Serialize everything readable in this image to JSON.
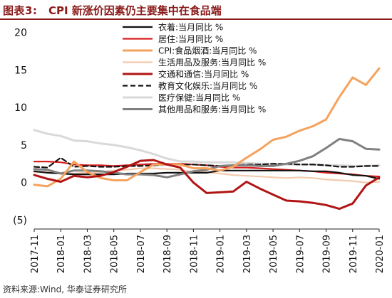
{
  "figure_label": "图表3:",
  "title": "CPI 新涨价因素仍主要集中在食品端",
  "source": "资料来源:Wind, 华泰证券研究所",
  "chart_data": {
    "type": "line",
    "ylim": [
      -6,
      21
    ],
    "y_ticks": [
      20,
      15,
      10,
      5,
      0,
      -5
    ],
    "y_tick_labels": [
      "20",
      "15",
      "10",
      "5",
      "0",
      "(5)"
    ],
    "x": [
      "2017-11",
      "2017-12",
      "2018-01",
      "2018-02",
      "2018-03",
      "2018-04",
      "2018-05",
      "2018-06",
      "2018-07",
      "2018-08",
      "2018-09",
      "2018-10",
      "2018-11",
      "2018-12",
      "2019-01",
      "2019-02",
      "2019-03",
      "2019-04",
      "2019-05",
      "2019-06",
      "2019-07",
      "2019-08",
      "2019-09",
      "2019-10",
      "2019-11",
      "2019-12",
      "2020-01"
    ],
    "x_tick_labels": [
      "2017-11",
      "2018-01",
      "2018-03",
      "2018-05",
      "2018-07",
      "2018-09",
      "2018-11",
      "2019-01",
      "2019-03",
      "2019-05",
      "2019-07",
      "2019-09",
      "2019-11",
      "2020-01"
    ],
    "grid": false,
    "legend_position": "top-right",
    "series": [
      {
        "name": "衣着:当月同比 %",
        "color": "#111111",
        "dash": "solid",
        "width": 2.2,
        "values": [
          1.5,
          1.3,
          1.2,
          1.1,
          1.1,
          1.1,
          1.1,
          1.2,
          1.2,
          1.2,
          1.3,
          1.3,
          1.3,
          1.3,
          1.6,
          1.6,
          1.6,
          1.6,
          1.6,
          1.6,
          1.6,
          1.5,
          1.5,
          1.3,
          1.0,
          0.9,
          0.5
        ]
      },
      {
        "name": "居住:当月同比 %",
        "color": "#d81e1e",
        "dash": "solid",
        "width": 2.2,
        "values": [
          2.8,
          2.8,
          2.7,
          2.4,
          2.3,
          2.3,
          2.2,
          2.3,
          2.4,
          2.5,
          2.5,
          2.5,
          2.4,
          2.3,
          2.1,
          2.0,
          2.0,
          1.9,
          1.8,
          1.7,
          1.6,
          1.5,
          1.3,
          1.2,
          1.1,
          0.9,
          0.8
        ]
      },
      {
        "name": "CPI:食品烟酒:当月同比 %",
        "color": "#f5a25d",
        "dash": "solid",
        "width": 3,
        "values": [
          -0.3,
          -0.5,
          0.5,
          2.8,
          1.4,
          0.6,
          0.3,
          0.3,
          1.4,
          2.4,
          2.4,
          2.4,
          1.9,
          1.9,
          1.6,
          2.1,
          3.3,
          4.4,
          5.7,
          6.1,
          6.9,
          7.5,
          8.4,
          11.4,
          14.0,
          13.0,
          15.2
        ]
      },
      {
        "name": "生活用品及服务:当月同比 %",
        "color": "#f3c9ad",
        "dash": "solid",
        "width": 2.2,
        "values": [
          1.4,
          1.4,
          1.2,
          1.2,
          1.3,
          1.4,
          1.6,
          1.7,
          1.9,
          1.9,
          1.8,
          1.7,
          1.4,
          1.4,
          1.2,
          1.0,
          0.9,
          0.8,
          0.7,
          0.6,
          0.7,
          0.6,
          0.4,
          0.3,
          0.2,
          0.0,
          0.1
        ]
      },
      {
        "name": "交通和通信:当月同比 %",
        "color": "#b01414",
        "dash": "solid",
        "width": 3,
        "values": [
          1.0,
          0.5,
          0.1,
          0.9,
          0.7,
          0.9,
          1.4,
          2.1,
          2.9,
          3.0,
          2.4,
          2.0,
          0.0,
          -1.4,
          -1.3,
          -1.2,
          0.1,
          -0.8,
          -1.6,
          -2.4,
          -2.5,
          -2.7,
          -3.0,
          -3.5,
          -2.8,
          -0.4,
          0.7
        ]
      },
      {
        "name": "教育文化娱乐:当月同比 %",
        "color": "#111111",
        "dash": "dashed",
        "width": 2.2,
        "values": [
          2.1,
          2.0,
          3.3,
          2.1,
          2.2,
          2.1,
          2.1,
          2.2,
          2.2,
          2.3,
          2.4,
          2.4,
          2.4,
          2.3,
          2.2,
          2.3,
          2.4,
          2.4,
          2.5,
          2.5,
          2.4,
          2.4,
          2.3,
          2.1,
          2.1,
          2.2,
          2.2
        ]
      },
      {
        "name": "医疗保健:当月同比 %",
        "color": "#d9d9d9",
        "dash": "solid",
        "width": 3,
        "values": [
          7.0,
          6.5,
          6.2,
          5.6,
          5.5,
          5.2,
          5.0,
          4.7,
          4.3,
          3.8,
          3.2,
          2.8,
          2.8,
          2.7,
          2.7,
          2.7,
          2.6,
          2.5,
          2.5,
          2.4,
          2.4,
          2.4,
          2.3,
          2.3,
          2.2,
          2.2,
          2.3
        ]
      },
      {
        "name": "其他用品和服务:当月同比 %",
        "color": "#808080",
        "dash": "solid",
        "width": 3,
        "values": [
          1.8,
          1.7,
          1.2,
          1.6,
          1.6,
          1.5,
          1.3,
          1.1,
          1.1,
          1.0,
          0.7,
          1.1,
          1.5,
          1.7,
          2.2,
          2.3,
          2.3,
          2.2,
          2.2,
          2.5,
          2.9,
          3.5,
          4.6,
          5.8,
          5.5,
          4.5,
          4.4
        ]
      }
    ]
  }
}
